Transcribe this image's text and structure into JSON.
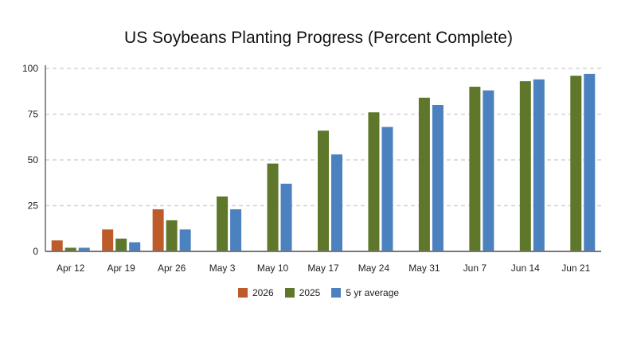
{
  "chart_data": {
    "type": "bar",
    "title": "US Soybeans Planting Progress (Percent Complete)",
    "xlabel": "",
    "ylabel": "",
    "ylim": [
      0,
      100
    ],
    "yticks": [
      0,
      25,
      50,
      75,
      100
    ],
    "grid": true,
    "legend_position": "bottom",
    "categories": [
      "Apr 12",
      "Apr 19",
      "Apr 26",
      "May 3",
      "May 10",
      "May 17",
      "May 24",
      "May 31",
      "Jun 7",
      "Jun 14",
      "Jun 21"
    ],
    "series": [
      {
        "name": "2026",
        "color": "#bd5b2b",
        "values": [
          6,
          12,
          23,
          null,
          null,
          null,
          null,
          null,
          null,
          null,
          null
        ]
      },
      {
        "name": "2025",
        "color": "#5e772b",
        "values": [
          2,
          7,
          17,
          30,
          48,
          66,
          76,
          84,
          90,
          93,
          96
        ]
      },
      {
        "name": "5 yr average",
        "color": "#4c81c0",
        "values": [
          2,
          5,
          12,
          23,
          37,
          53,
          68,
          80,
          88,
          94,
          97
        ]
      }
    ]
  }
}
